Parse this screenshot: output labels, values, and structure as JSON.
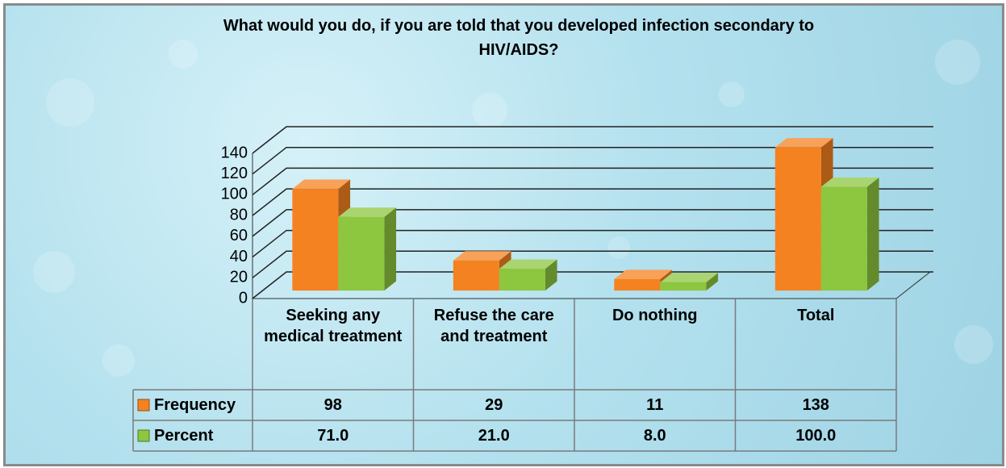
{
  "chart_data": {
    "type": "bar",
    "title": "What would you do, if you are told that you developed infection secondary to HIV/AIDS?",
    "categories": [
      "Seeking any medical treatment",
      "Refuse the care and treatment",
      "Do nothing",
      "Total"
    ],
    "series": [
      {
        "name": "Frequency",
        "color": "#f58220",
        "values": [
          98,
          29,
          11,
          138
        ]
      },
      {
        "name": "Percent",
        "color": "#8dc63f",
        "values": [
          71,
          21,
          8,
          100
        ],
        "value_labels": [
          "71.0",
          "21.0",
          "8.0",
          "100.0"
        ]
      }
    ],
    "ylim": [
      0,
      140
    ],
    "yticks": [
      0,
      20,
      40,
      60,
      80,
      100,
      120,
      140
    ],
    "grid": true
  }
}
